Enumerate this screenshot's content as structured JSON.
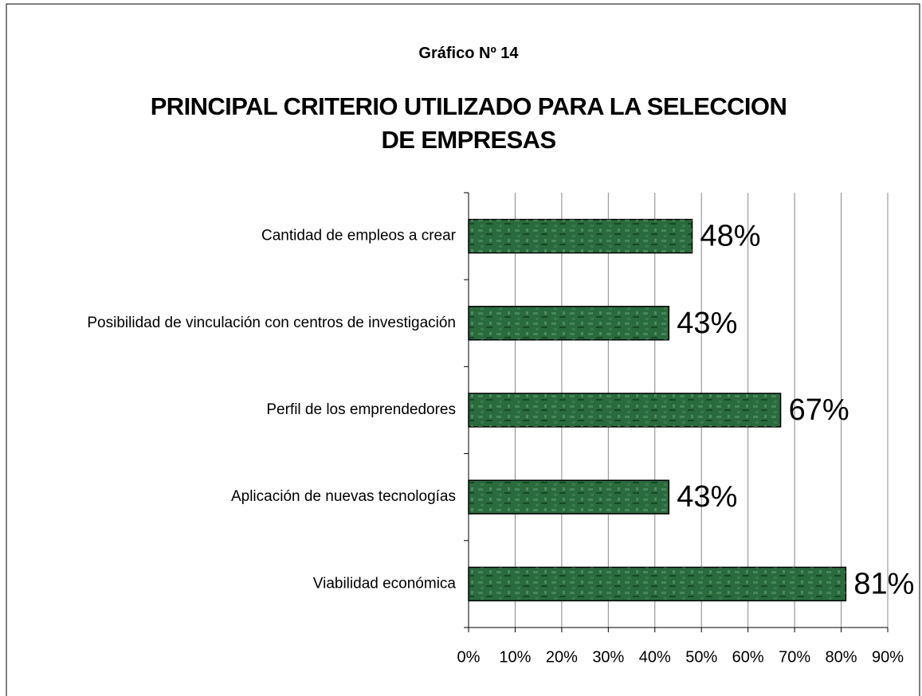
{
  "chart_data": {
    "type": "bar",
    "orientation": "horizontal",
    "subtitle": "Gráfico Nº 14",
    "title": "PRINCIPAL CRITERIO UTILIZADO PARA LA SELECCION\nDE EMPRESAS",
    "categories": [
      "Cantidad de empleos a crear",
      "Posibilidad de vinculación con centros de investigación",
      "Perfil de los emprendedores",
      "Aplicación de nuevas tecnologías",
      "Viabilidad económica"
    ],
    "values": [
      48,
      43,
      67,
      43,
      81
    ],
    "value_labels": [
      "48%",
      "43%",
      "67%",
      "43%",
      "81%"
    ],
    "color": "#2a6b3e",
    "xlim": [
      0,
      90
    ],
    "xticks": [
      {
        "value": 0,
        "label": "0%"
      },
      {
        "value": 10,
        "label": "10%"
      },
      {
        "value": 20,
        "label": "20%"
      },
      {
        "value": 30,
        "label": "30%"
      },
      {
        "value": 40,
        "label": "40%"
      },
      {
        "value": 50,
        "label": "50%"
      },
      {
        "value": 60,
        "label": "60%"
      },
      {
        "value": 70,
        "label": "70%"
      },
      {
        "value": 80,
        "label": "80%"
      },
      {
        "value": 90,
        "label": "90%"
      }
    ],
    "grid": true
  }
}
